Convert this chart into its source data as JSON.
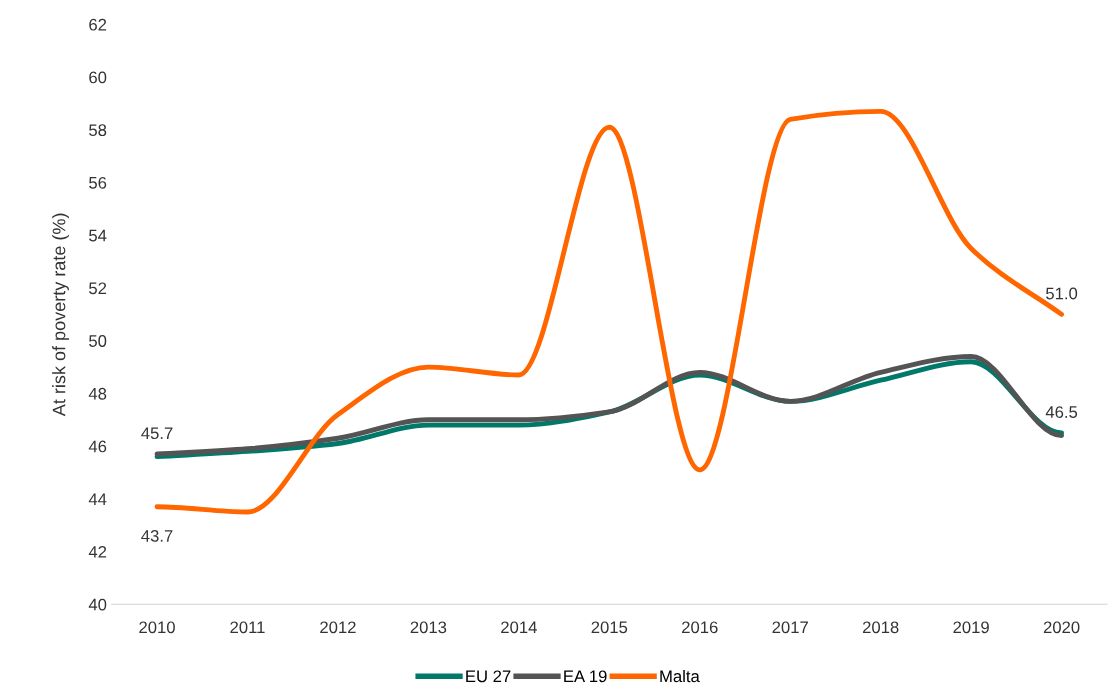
{
  "chart_data": {
    "type": "line",
    "ylabel": "At risk of poverty rate (%)",
    "categories": [
      "2010",
      "2011",
      "2012",
      "2013",
      "2014",
      "2015",
      "2016",
      "2017",
      "2018",
      "2019",
      "2020"
    ],
    "series": [
      {
        "name": "EU 27",
        "color": "#00786a",
        "values": [
          45.6,
          45.8,
          46.1,
          46.8,
          46.8,
          47.3,
          48.7,
          47.7,
          48.5,
          49.2,
          46.5
        ],
        "value_labels": [
          null,
          null,
          null,
          null,
          null,
          null,
          null,
          null,
          null,
          null,
          "46.5"
        ]
      },
      {
        "name": "EA 19",
        "color": "#545454",
        "values": [
          45.7,
          45.9,
          46.3,
          47.0,
          47.0,
          47.3,
          48.8,
          47.7,
          48.8,
          49.4,
          46.4
        ],
        "value_labels": [
          "45.7",
          null,
          null,
          null,
          null,
          null,
          null,
          null,
          null,
          null,
          null
        ]
      },
      {
        "name": "Malta",
        "color": "#ff6600",
        "values": [
          43.7,
          43.5,
          47.2,
          49.0,
          48.7,
          58.1,
          45.1,
          58.4,
          58.7,
          53.5,
          51.0
        ],
        "value_labels": [
          "43.7",
          null,
          null,
          null,
          null,
          null,
          null,
          null,
          null,
          null,
          "51.0"
        ]
      }
    ],
    "ylim": [
      40,
      62
    ],
    "yticks": [
      40,
      42,
      44,
      46,
      48,
      50,
      52,
      54,
      56,
      58,
      60,
      62
    ],
    "grid": false,
    "legend": "bottom",
    "marker": "none",
    "line_style": "solid"
  }
}
